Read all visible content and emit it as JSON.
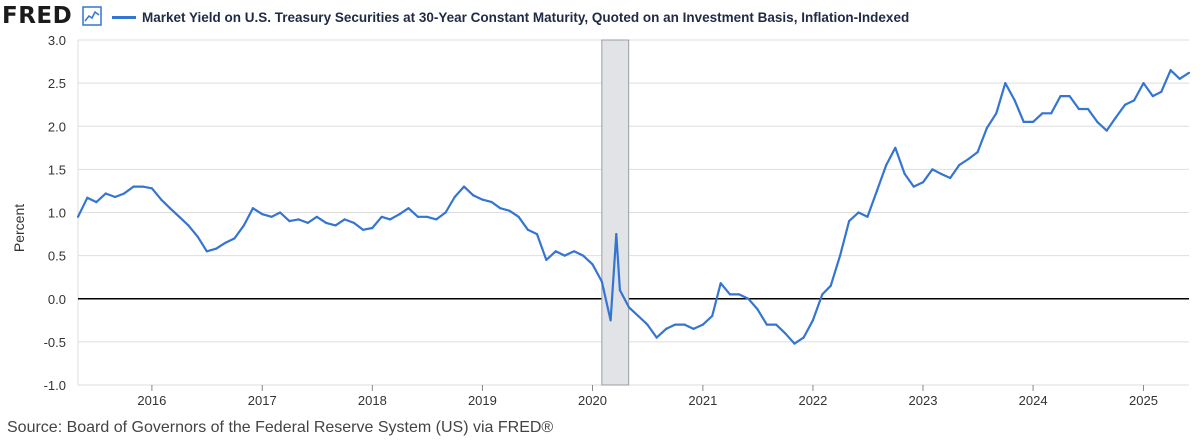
{
  "header": {
    "logo_text": "FRED",
    "logo_icon": "line-chart-icon"
  },
  "colors": {
    "series": "#3475d2",
    "recession_shade": "#e1e3e6",
    "zero_line": "#000000",
    "grid": "#dedede",
    "axis_text": "#333333"
  },
  "chart_data": {
    "type": "line",
    "title": "",
    "xlabel": "",
    "ylabel": "Percent",
    "ylim": [
      -1.0,
      3.0
    ],
    "yticks": [
      "-1.0",
      "-0.5",
      "0.0",
      "0.5",
      "1.0",
      "1.5",
      "2.0",
      "2.5",
      "3.0"
    ],
    "xlim": [
      "2015-05-01",
      "2025-06-01"
    ],
    "xticks": [
      "2016",
      "2017",
      "2018",
      "2019",
      "2020",
      "2021",
      "2022",
      "2023",
      "2024",
      "2025"
    ],
    "grid": "horizontal",
    "recession_shading": [
      [
        "2020-02-01",
        "2020-04-30"
      ]
    ],
    "reference_line": 0.0,
    "legend": "top-left",
    "series": [
      {
        "name": "Market Yield on U.S. Treasury Securities at 30-Year Constant Maturity, Quoted on an Investment Basis, Inflation-Indexed",
        "points": [
          [
            "2015-05-01",
            0.95
          ],
          [
            "2015-06-01",
            1.17
          ],
          [
            "2015-07-01",
            1.12
          ],
          [
            "2015-08-01",
            1.22
          ],
          [
            "2015-09-01",
            1.18
          ],
          [
            "2015-10-01",
            1.22
          ],
          [
            "2015-11-01",
            1.3
          ],
          [
            "2015-12-01",
            1.3
          ],
          [
            "2016-01-01",
            1.28
          ],
          [
            "2016-02-01",
            1.15
          ],
          [
            "2016-03-01",
            1.05
          ],
          [
            "2016-04-01",
            0.95
          ],
          [
            "2016-05-01",
            0.85
          ],
          [
            "2016-06-01",
            0.72
          ],
          [
            "2016-07-01",
            0.55
          ],
          [
            "2016-08-01",
            0.58
          ],
          [
            "2016-09-01",
            0.65
          ],
          [
            "2016-10-01",
            0.7
          ],
          [
            "2016-11-01",
            0.85
          ],
          [
            "2016-12-01",
            1.05
          ],
          [
            "2017-01-01",
            0.98
          ],
          [
            "2017-02-01",
            0.95
          ],
          [
            "2017-03-01",
            1.0
          ],
          [
            "2017-04-01",
            0.9
          ],
          [
            "2017-05-01",
            0.92
          ],
          [
            "2017-06-01",
            0.88
          ],
          [
            "2017-07-01",
            0.95
          ],
          [
            "2017-08-01",
            0.88
          ],
          [
            "2017-09-01",
            0.85
          ],
          [
            "2017-10-01",
            0.92
          ],
          [
            "2017-11-01",
            0.88
          ],
          [
            "2017-12-01",
            0.8
          ],
          [
            "2018-01-01",
            0.82
          ],
          [
            "2018-02-01",
            0.95
          ],
          [
            "2018-03-01",
            0.92
          ],
          [
            "2018-04-01",
            0.98
          ],
          [
            "2018-05-01",
            1.05
          ],
          [
            "2018-06-01",
            0.95
          ],
          [
            "2018-07-01",
            0.95
          ],
          [
            "2018-08-01",
            0.92
          ],
          [
            "2018-09-01",
            1.0
          ],
          [
            "2018-10-01",
            1.18
          ],
          [
            "2018-11-01",
            1.3
          ],
          [
            "2018-12-01",
            1.2
          ],
          [
            "2019-01-01",
            1.15
          ],
          [
            "2019-02-01",
            1.12
          ],
          [
            "2019-03-01",
            1.05
          ],
          [
            "2019-04-01",
            1.02
          ],
          [
            "2019-05-01",
            0.95
          ],
          [
            "2019-06-01",
            0.8
          ],
          [
            "2019-07-01",
            0.75
          ],
          [
            "2019-08-01",
            0.45
          ],
          [
            "2019-09-01",
            0.55
          ],
          [
            "2019-10-01",
            0.5
          ],
          [
            "2019-11-01",
            0.55
          ],
          [
            "2019-12-01",
            0.5
          ],
          [
            "2020-01-01",
            0.4
          ],
          [
            "2020-02-01",
            0.2
          ],
          [
            "2020-03-01",
            -0.25
          ],
          [
            "2020-03-20",
            0.75
          ],
          [
            "2020-04-01",
            0.1
          ],
          [
            "2020-05-01",
            -0.1
          ],
          [
            "2020-06-01",
            -0.2
          ],
          [
            "2020-07-01",
            -0.3
          ],
          [
            "2020-08-01",
            -0.45
          ],
          [
            "2020-09-01",
            -0.35
          ],
          [
            "2020-10-01",
            -0.3
          ],
          [
            "2020-11-01",
            -0.3
          ],
          [
            "2020-12-01",
            -0.35
          ],
          [
            "2021-01-01",
            -0.3
          ],
          [
            "2021-02-01",
            -0.2
          ],
          [
            "2021-03-01",
            0.18
          ],
          [
            "2021-04-01",
            0.05
          ],
          [
            "2021-05-01",
            0.05
          ],
          [
            "2021-06-01",
            0.0
          ],
          [
            "2021-07-01",
            -0.12
          ],
          [
            "2021-08-01",
            -0.3
          ],
          [
            "2021-09-01",
            -0.3
          ],
          [
            "2021-10-01",
            -0.4
          ],
          [
            "2021-11-01",
            -0.52
          ],
          [
            "2021-12-01",
            -0.45
          ],
          [
            "2022-01-01",
            -0.25
          ],
          [
            "2022-02-01",
            0.05
          ],
          [
            "2022-03-01",
            0.15
          ],
          [
            "2022-04-01",
            0.5
          ],
          [
            "2022-05-01",
            0.9
          ],
          [
            "2022-06-01",
            1.0
          ],
          [
            "2022-07-01",
            0.95
          ],
          [
            "2022-08-01",
            1.25
          ],
          [
            "2022-09-01",
            1.55
          ],
          [
            "2022-10-01",
            1.75
          ],
          [
            "2022-11-01",
            1.45
          ],
          [
            "2022-12-01",
            1.3
          ],
          [
            "2023-01-01",
            1.35
          ],
          [
            "2023-02-01",
            1.5
          ],
          [
            "2023-03-01",
            1.45
          ],
          [
            "2023-04-01",
            1.4
          ],
          [
            "2023-05-01",
            1.55
          ],
          [
            "2023-06-01",
            1.62
          ],
          [
            "2023-07-01",
            1.7
          ],
          [
            "2023-08-01",
            1.98
          ],
          [
            "2023-09-01",
            2.15
          ],
          [
            "2023-10-01",
            2.5
          ],
          [
            "2023-11-01",
            2.3
          ],
          [
            "2023-12-01",
            2.05
          ],
          [
            "2024-01-01",
            2.05
          ],
          [
            "2024-02-01",
            2.15
          ],
          [
            "2024-03-01",
            2.15
          ],
          [
            "2024-04-01",
            2.35
          ],
          [
            "2024-05-01",
            2.35
          ],
          [
            "2024-06-01",
            2.2
          ],
          [
            "2024-07-01",
            2.2
          ],
          [
            "2024-08-01",
            2.05
          ],
          [
            "2024-09-01",
            1.95
          ],
          [
            "2024-10-01",
            2.1
          ],
          [
            "2024-11-01",
            2.25
          ],
          [
            "2024-12-01",
            2.3
          ],
          [
            "2025-01-01",
            2.5
          ],
          [
            "2025-02-01",
            2.35
          ],
          [
            "2025-03-01",
            2.4
          ],
          [
            "2025-04-01",
            2.65
          ],
          [
            "2025-05-01",
            2.55
          ],
          [
            "2025-06-01",
            2.62
          ]
        ]
      }
    ]
  },
  "source": "Source: Board of Governors of the Federal Reserve System (US) via FRED®"
}
